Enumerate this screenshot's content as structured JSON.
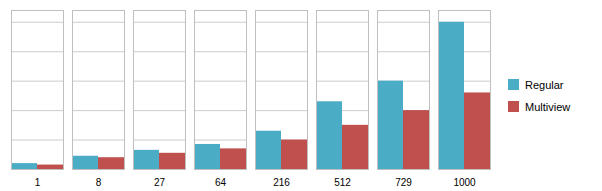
{
  "chart_data": {
    "type": "bar",
    "categories": [
      "1",
      "8",
      "27",
      "64",
      "216",
      "512",
      "729",
      "1000"
    ],
    "series": [
      {
        "name": "Regular",
        "color": "#4bacc6",
        "values": [
          0.04,
          0.09,
          0.13,
          0.17,
          0.26,
          0.46,
          0.6,
          1.0
        ]
      },
      {
        "name": "Multiview",
        "color": "#c0504d",
        "values": [
          0.03,
          0.08,
          0.11,
          0.14,
          0.2,
          0.3,
          0.4,
          0.52
        ]
      }
    ],
    "ylim": [
      0,
      1.08
    ],
    "yticks": [
      0.0,
      0.2,
      0.4,
      0.6,
      0.8,
      1.0
    ],
    "grid": true,
    "tick_labels": "x",
    "legend": "right"
  }
}
